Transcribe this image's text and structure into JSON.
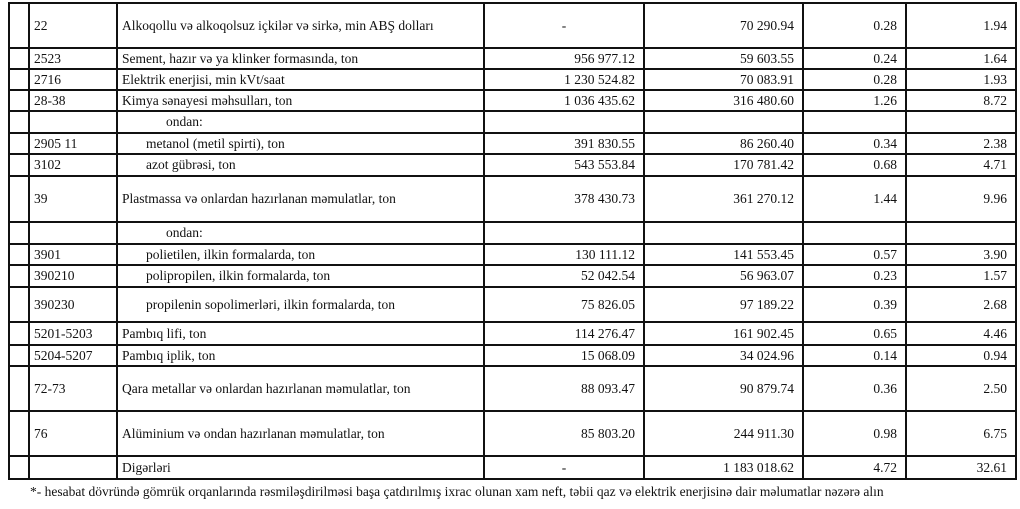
{
  "rows": [
    {
      "code": "22",
      "name": "Alkoqollu və alkoqolsuz içkilər və sirkə, min ABŞ dolları",
      "qty": "-",
      "value": "70 290.94",
      "share1": "0.28",
      "share2": "1.94",
      "h": 45,
      "indent": 0
    },
    {
      "code": "2523",
      "name": "Sement, hazır və ya klinker formasında, ton",
      "qty": "956 977.12",
      "value": "59 603.55",
      "share1": "0.24",
      "share2": "1.64",
      "h": 21,
      "indent": 0
    },
    {
      "code": "2716",
      "name": "Elektrik enerjisi, min kVt/saat",
      "qty": "1 230 524.82",
      "value": "70 083.91",
      "share1": "0.28",
      "share2": "1.93",
      "h": 21,
      "indent": 0
    },
    {
      "code": "28-38",
      "name": "Kimya sənayesi məhsulları, ton",
      "qty": "1 036 435.62",
      "value": "316 480.60",
      "share1": "1.26",
      "share2": "8.72",
      "h": 21,
      "indent": 0
    },
    {
      "code": "",
      "name": "ondan:",
      "qty": "",
      "value": "",
      "share1": "",
      "share2": "",
      "h": 22,
      "indent": 2
    },
    {
      "code": "2905 11",
      "name": "metanol (metil spirti), ton",
      "qty": "391 830.55",
      "value": "86 260.40",
      "share1": "0.34",
      "share2": "2.38",
      "h": 21,
      "indent": 1
    },
    {
      "code": "3102",
      "name": "azot gübrəsi, ton",
      "qty": "543 553.84",
      "value": "170 781.42",
      "share1": "0.68",
      "share2": "4.71",
      "h": 22,
      "indent": 1
    },
    {
      "code": "39",
      "name": "Plastmassa və onlardan hazırlanan məmulatlar, ton",
      "qty": "378 430.73",
      "value": "361 270.12",
      "share1": "1.44",
      "share2": "9.96",
      "h": 46,
      "indent": 0
    },
    {
      "code": "",
      "name": "ondan:",
      "qty": "",
      "value": "",
      "share1": "",
      "share2": "",
      "h": 22,
      "indent": 2
    },
    {
      "code": "3901",
      "name": "polietilen, ilkin formalarda, ton",
      "qty": "130 111.12",
      "value": "141 553.45",
      "share1": "0.57",
      "share2": "3.90",
      "h": 21,
      "indent": 1
    },
    {
      "code": "390210",
      "name": "polipropilen, ilkin formalarda, ton",
      "qty": "52 042.54",
      "value": "56 963.07",
      "share1": "0.23",
      "share2": "1.57",
      "h": 22,
      "indent": 1
    },
    {
      "code": "390230",
      "name": "propilenin sopolimerləri, ilkin formalarda, ton",
      "qty": "75 826.05",
      "value": "97 189.22",
      "share1": "0.39",
      "share2": "2.68",
      "h": 35,
      "indent": 1
    },
    {
      "code": "5201-5203",
      "name": "Pambıq lifi, ton",
      "qty": "114 276.47",
      "value": "161 902.45",
      "share1": "0.65",
      "share2": "4.46",
      "h": 23,
      "indent": 0
    },
    {
      "code": "5204-5207",
      "name": "Pambıq iplik, ton",
      "qty": "15 068.09",
      "value": "34 024.96",
      "share1": "0.14",
      "share2": "0.94",
      "h": 21,
      "indent": 0
    },
    {
      "code": "72-73",
      "name": "Qara metallar və onlardan hazırlanan məmulatlar, ton",
      "qty": "88 093.47",
      "value": "90 879.74",
      "share1": "0.36",
      "share2": "2.50",
      "h": 45,
      "indent": 0
    },
    {
      "code": "76",
      "name": "Alüminium və ondan hazırlanan məmulatlar, ton",
      "qty": "85 803.20",
      "value": "244 911.30",
      "share1": "0.98",
      "share2": "6.75",
      "h": 45,
      "indent": 0
    },
    {
      "code": "",
      "name": "Digərləri",
      "qty": "-",
      "value": "1 183 018.62",
      "share1": "4.72",
      "share2": "32.61",
      "h": 23,
      "indent": 0
    }
  ],
  "footnote": "*- hesabat dövründə gömrük orqanlarında rəsmiləşdirilməsi başa çatdırılmış ixrac olunan xam neft, təbii qaz və elektrik enerjisinə dair məlumatlar nəzərə alın"
}
